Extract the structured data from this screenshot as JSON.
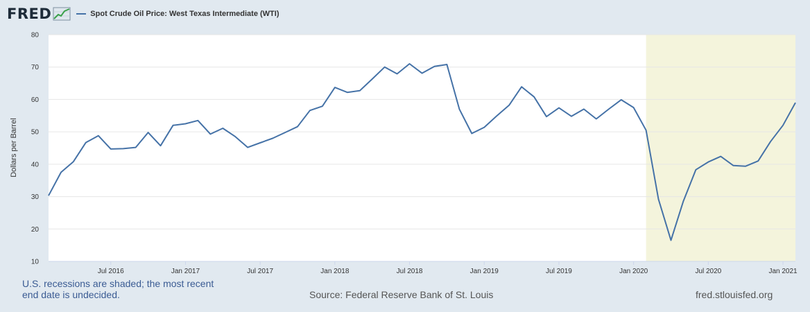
{
  "header": {
    "logo_text": "FRED",
    "logo_icon": "chart-line-icon"
  },
  "footer": {
    "recession_note": "U.S. recessions are shaded; the most recent end date is undecided.",
    "source": "Source: Federal Reserve Bank of St. Louis",
    "site": "fred.stlouisfed.org"
  },
  "colors": {
    "line": "#4572a7",
    "recession": "#f4f4dc",
    "background": "#e1e9f0"
  },
  "chart_data": {
    "type": "line",
    "title": "",
    "ylabel": "Dollars per Barrel",
    "xlabel": "",
    "ylim": [
      10,
      80
    ],
    "yticks": [
      10,
      20,
      30,
      40,
      50,
      60,
      70,
      80
    ],
    "xticks": [
      "Jul 2016",
      "Jan 2017",
      "Jul 2017",
      "Jan 2018",
      "Jul 2018",
      "Jan 2019",
      "Jul 2019",
      "Jan 2020",
      "Jul 2020",
      "Jan 2021"
    ],
    "xtick_dates": [
      "2016-07",
      "2017-01",
      "2017-07",
      "2018-01",
      "2018-07",
      "2019-01",
      "2019-07",
      "2020-01",
      "2020-07",
      "2021-01"
    ],
    "xrange": [
      "2016-02",
      "2021-02"
    ],
    "grid": true,
    "legend_position": "top-left",
    "recession": {
      "start": "2020-02",
      "end": "2021-02"
    },
    "series": [
      {
        "name": "Spot Crude Oil Price: West Texas Intermediate (WTI)",
        "x": [
          "2016-02",
          "2016-03",
          "2016-04",
          "2016-05",
          "2016-06",
          "2016-07",
          "2016-08",
          "2016-09",
          "2016-10",
          "2016-11",
          "2016-12",
          "2017-01",
          "2017-02",
          "2017-03",
          "2017-04",
          "2017-05",
          "2017-06",
          "2017-07",
          "2017-08",
          "2017-09",
          "2017-10",
          "2017-11",
          "2017-12",
          "2018-01",
          "2018-02",
          "2018-03",
          "2018-04",
          "2018-05",
          "2018-06",
          "2018-07",
          "2018-08",
          "2018-09",
          "2018-10",
          "2018-11",
          "2018-12",
          "2019-01",
          "2019-02",
          "2019-03",
          "2019-04",
          "2019-05",
          "2019-06",
          "2019-07",
          "2019-08",
          "2019-09",
          "2019-10",
          "2019-11",
          "2019-12",
          "2020-01",
          "2020-02",
          "2020-03",
          "2020-04",
          "2020-05",
          "2020-06",
          "2020-07",
          "2020-08",
          "2020-09",
          "2020-10",
          "2020-11",
          "2020-12",
          "2021-01",
          "2021-02"
        ],
        "values": [
          30.3,
          37.5,
          40.8,
          46.7,
          48.8,
          44.7,
          44.8,
          45.2,
          49.8,
          45.7,
          52.0,
          52.5,
          53.5,
          49.3,
          51.1,
          48.5,
          45.2,
          46.6,
          48.0,
          49.8,
          51.6,
          56.6,
          57.9,
          63.7,
          62.2,
          62.7,
          66.3,
          70.0,
          67.9,
          71.0,
          68.1,
          70.2,
          70.8,
          57.0,
          49.5,
          51.4,
          54.9,
          58.2,
          63.9,
          60.8,
          54.7,
          57.4,
          54.8,
          57.0,
          54.0,
          57.0,
          59.9,
          57.5,
          50.5,
          29.2,
          16.5,
          28.6,
          38.3,
          40.7,
          42.4,
          39.6,
          39.4,
          41.0,
          47.0,
          52.0,
          59.0
        ]
      }
    ]
  }
}
